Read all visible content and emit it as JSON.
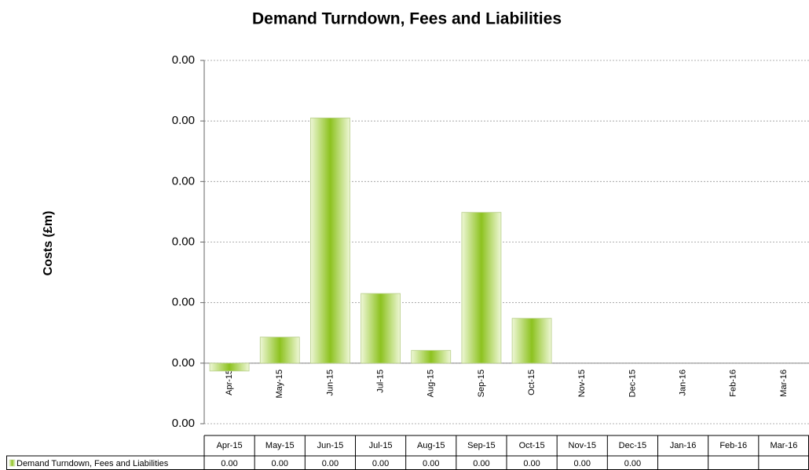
{
  "chart_data": {
    "type": "bar",
    "title": "Demand Turndown, Fees and Liabilities",
    "y_label": "Costs (£m)",
    "categories": [
      "Apr-15",
      "May-15",
      "Jun-15",
      "Jul-15",
      "Aug-15",
      "Sep-15",
      "Oct-15",
      "Nov-15",
      "Dec-15",
      "Jan-16",
      "Feb-16",
      "Mar-16"
    ],
    "series": [
      {
        "name": "Demand Turndown, Fees and Liabilities",
        "color": "#8dc21f",
        "values": [
          -0.00013,
          0.00043,
          0.00405,
          0.00115,
          0.00021,
          0.00249,
          0.00074,
          0,
          0,
          null,
          null,
          null
        ],
        "value_labels": [
          "0.00",
          "0.00",
          "0.00",
          "0.00",
          "0.00",
          "0.00",
          "0.00",
          "0.00",
          "0.00",
          null,
          null,
          null
        ]
      }
    ],
    "ylim": [
      -0.001,
      0.005
    ],
    "yticks": [
      {
        "value": -0.001,
        "label": "0.00"
      },
      {
        "value": 0,
        "label": "0.00"
      },
      {
        "value": 0.001,
        "label": "0.00"
      },
      {
        "value": 0.002,
        "label": "0.00"
      },
      {
        "value": 0.003,
        "label": "0.00"
      },
      {
        "value": 0.004,
        "label": "0.00"
      },
      {
        "value": 0.005,
        "label": "0.00"
      }
    ],
    "grid": true,
    "data_table": true
  }
}
